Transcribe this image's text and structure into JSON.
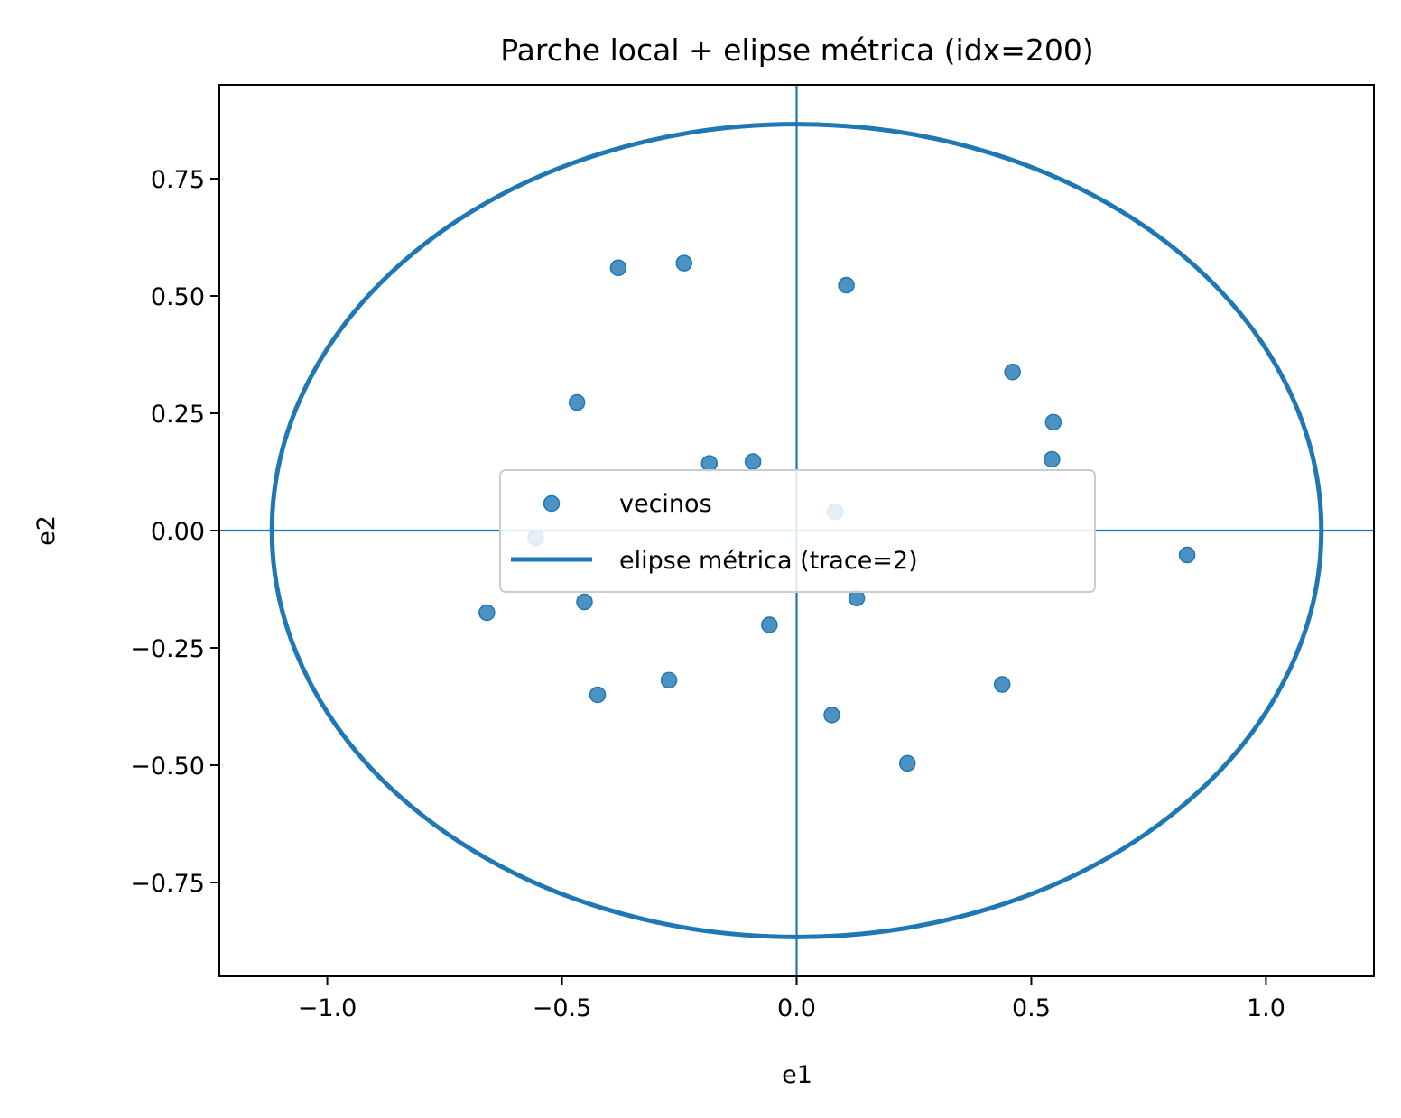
{
  "chart_data": {
    "type": "scatter",
    "title": "Parche local + elipse métrica (idx=200)",
    "xlabel": "e1",
    "ylabel": "e2",
    "xlim": [
      -1.23,
      1.23
    ],
    "ylim": [
      -0.95,
      0.95
    ],
    "xticks": [
      -1.0,
      -0.5,
      0.0,
      0.5,
      1.0
    ],
    "xtick_labels": [
      "−1.0",
      "−0.5",
      "0.0",
      "0.5",
      "1.0"
    ],
    "yticks": [
      0.75,
      0.5,
      0.25,
      0.0,
      -0.25,
      -0.5,
      -0.75
    ],
    "ytick_labels": [
      "0.75",
      "0.50",
      "0.25",
      "0.00",
      "−0.25",
      "−0.50",
      "−0.75"
    ],
    "grid": false,
    "reference_lines": {
      "x": 0,
      "y": 0
    },
    "legend": {
      "placement": "center"
    },
    "series": [
      {
        "name": "vecinos",
        "kind": "scatter",
        "color": "#1f77b4",
        "points": [
          [
            -0.38,
            0.56
          ],
          [
            -0.24,
            0.57
          ],
          [
            0.106,
            0.523
          ],
          [
            0.46,
            0.338
          ],
          [
            -0.468,
            0.273
          ],
          [
            0.547,
            0.231
          ],
          [
            -0.186,
            0.143
          ],
          [
            -0.093,
            0.147
          ],
          [
            0.544,
            0.152
          ],
          [
            0.082,
            0.04
          ],
          [
            -0.556,
            -0.016
          ],
          [
            0.832,
            -0.052
          ],
          [
            -0.452,
            -0.152
          ],
          [
            0.128,
            -0.144
          ],
          [
            -0.66,
            -0.175
          ],
          [
            -0.058,
            -0.201
          ],
          [
            -0.272,
            -0.319
          ],
          [
            -0.424,
            -0.35
          ],
          [
            0.438,
            -0.328
          ],
          [
            0.075,
            -0.393
          ],
          [
            0.236,
            -0.496
          ]
        ]
      },
      {
        "name": "elipse métrica (trace=2)",
        "kind": "ellipse",
        "color": "#1f77b4",
        "center": [
          0,
          0
        ],
        "semi_axis_x": 1.118,
        "semi_axis_y": 0.866
      }
    ]
  }
}
